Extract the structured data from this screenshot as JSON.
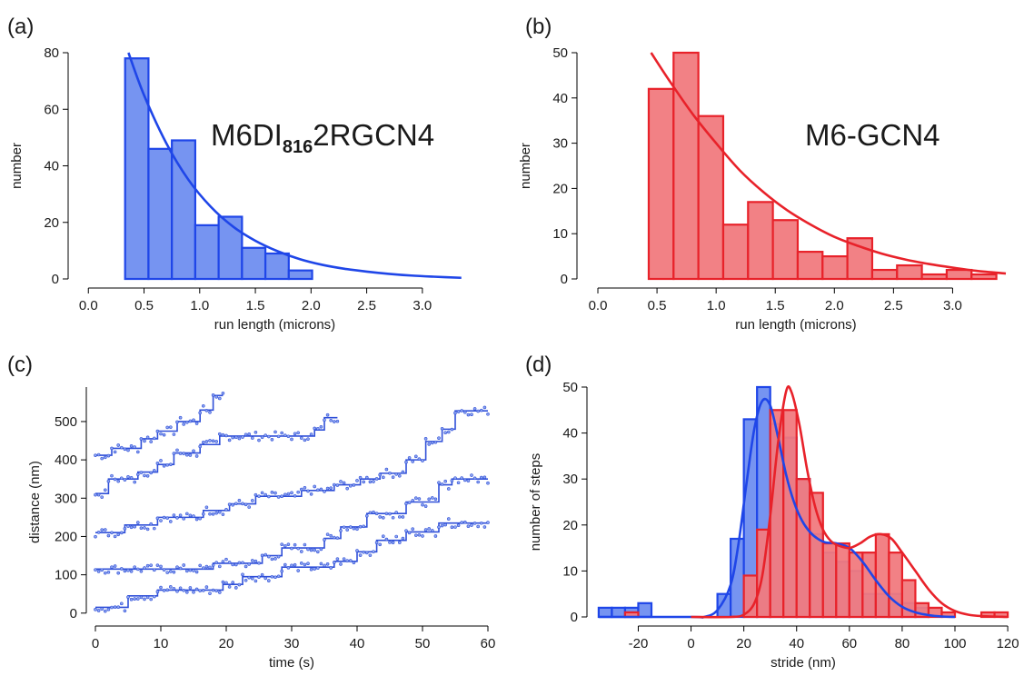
{
  "panel_labels": [
    "(a)",
    "(b)",
    "(c)",
    "(d)"
  ],
  "chart_data": [
    {
      "panel": "(a)",
      "type": "bar",
      "annotation": {
        "main": "M6DI",
        "subscript": "816",
        "rest": "2RGCN4"
      },
      "xlabel": "run length (microns)",
      "ylabel": "number",
      "xlim": [
        -0.1,
        3.45
      ],
      "ylim": [
        0,
        80
      ],
      "xticks": [
        0.0,
        0.5,
        1.0,
        1.5,
        2.0,
        2.5,
        3.0
      ],
      "xtick_labels": [
        "0.0",
        "0.5",
        "1.0",
        "1.5",
        "2.0",
        "2.5",
        "3.0"
      ],
      "yticks": [
        0,
        20,
        40,
        60,
        80
      ],
      "ytick_labels": [
        "0",
        "20",
        "40",
        "60",
        "80"
      ],
      "series": [
        {
          "kind": "histogram",
          "bins": [
            [
              0.33,
              0.54
            ],
            [
              0.54,
              0.75
            ],
            [
              0.75,
              0.96
            ],
            [
              0.96,
              1.17
            ],
            [
              1.17,
              1.38
            ],
            [
              1.38,
              1.59
            ],
            [
              1.59,
              1.8
            ],
            [
              1.8,
              2.01
            ]
          ],
          "values": [
            78,
            46,
            49,
            19,
            22,
            11,
            9,
            3
          ],
          "color": "#1f46e8",
          "fill": "#6f8ef0"
        },
        {
          "kind": "fit",
          "x": [
            0.36,
            0.5,
            0.7,
            0.9,
            1.1,
            1.3,
            1.5,
            1.7,
            1.9,
            2.1,
            2.3,
            2.5,
            2.7,
            2.9,
            3.1,
            3.35
          ],
          "y": [
            80,
            65,
            48,
            35,
            25.5,
            18.5,
            13.5,
            9.8,
            7.0,
            5.0,
            3.6,
            2.6,
            1.8,
            1.2,
            0.8,
            0.4
          ],
          "color": "#1f46e8"
        }
      ]
    },
    {
      "panel": "(b)",
      "type": "bar",
      "annotation": {
        "main": "M6-GCN4"
      },
      "xlabel": "run length (microns)",
      "ylabel": "number",
      "xlim": [
        -0.1,
        3.45
      ],
      "ylim": [
        0,
        50
      ],
      "xticks": [
        0.0,
        0.5,
        1.0,
        1.5,
        2.0,
        2.5,
        3.0
      ],
      "xtick_labels": [
        "0.0",
        "0.5",
        "1.0",
        "1.5",
        "2.0",
        "2.5",
        "3.0"
      ],
      "yticks": [
        0,
        10,
        20,
        30,
        40,
        50
      ],
      "ytick_labels": [
        "0",
        "10",
        "20",
        "30",
        "40",
        "50"
      ],
      "series": [
        {
          "kind": "histogram",
          "bins": [
            [
              0.43,
              0.64
            ],
            [
              0.64,
              0.85
            ],
            [
              0.85,
              1.06
            ],
            [
              1.06,
              1.27
            ],
            [
              1.27,
              1.48
            ],
            [
              1.48,
              1.69
            ],
            [
              1.69,
              1.9
            ],
            [
              1.9,
              2.11
            ],
            [
              2.11,
              2.32
            ],
            [
              2.32,
              2.53
            ],
            [
              2.53,
              2.74
            ],
            [
              2.74,
              2.95
            ],
            [
              2.95,
              3.16
            ],
            [
              3.16,
              3.37
            ]
          ],
          "values": [
            42,
            50,
            36,
            12,
            17,
            13,
            6,
            5,
            9,
            2,
            3,
            1,
            2,
            1
          ],
          "color": "#e8222a",
          "fill": "#f17a7e"
        },
        {
          "kind": "fit",
          "x": [
            0.45,
            0.6,
            0.8,
            1.0,
            1.2,
            1.4,
            1.6,
            1.8,
            2.0,
            2.2,
            2.4,
            2.6,
            2.8,
            3.0,
            3.2,
            3.45
          ],
          "y": [
            50,
            44,
            36.5,
            30,
            24,
            19.2,
            15.2,
            12,
            9.3,
            7.3,
            5.6,
            4.3,
            3.3,
            2.5,
            1.8,
            1.2
          ],
          "color": "#e8222a"
        }
      ]
    },
    {
      "panel": "(c)",
      "type": "scatter",
      "xlabel": "time (s)",
      "ylabel": "distance (nm)",
      "xlim": [
        0,
        60
      ],
      "ylim": [
        -10,
        590
      ],
      "xticks": [
        0,
        10,
        20,
        30,
        40,
        50,
        60
      ],
      "xtick_labels": [
        "0",
        "10",
        "20",
        "30",
        "40",
        "50",
        "60"
      ],
      "yticks": [
        0,
        100,
        200,
        300,
        400,
        500
      ],
      "ytick_labels": [
        "0",
        "100",
        "200",
        "300",
        "400",
        "500"
      ],
      "color": "#2f4fd8",
      "series": [
        {
          "x_range": [
            0,
            19.5
          ],
          "steps": [
            [
              0,
              412
            ],
            [
              2.5,
              430
            ],
            [
              7,
              455
            ],
            [
              9.5,
              475
            ],
            [
              12.5,
              500
            ],
            [
              16,
              530
            ],
            [
              18,
              568
            ]
          ]
        },
        {
          "x_range": [
            0,
            37
          ],
          "steps": [
            [
              0,
              312
            ],
            [
              2,
              350
            ],
            [
              6.5,
              368
            ],
            [
              9.5,
              388
            ],
            [
              12,
              418
            ],
            [
              16,
              440
            ],
            [
              19,
              462
            ],
            [
              33.5,
              478
            ],
            [
              35,
              510
            ]
          ]
        },
        {
          "x_range": [
            0,
            60
          ],
          "steps": [
            [
              0,
              210
            ],
            [
              4.5,
              230
            ],
            [
              9.5,
              250
            ],
            [
              16.5,
              268
            ],
            [
              20.5,
              285
            ],
            [
              24.5,
              305
            ],
            [
              31.5,
              320
            ],
            [
              36.5,
              335
            ],
            [
              40.5,
              350
            ],
            [
              43.5,
              365
            ],
            [
              47.5,
              400
            ],
            [
              50.5,
              448
            ],
            [
              53,
              480
            ],
            [
              55,
              528
            ]
          ]
        },
        {
          "x_range": [
            0,
            60
          ],
          "steps": [
            [
              0,
              115
            ],
            [
              18,
              130
            ],
            [
              25.5,
              150
            ],
            [
              28.5,
              170
            ],
            [
              35,
              195
            ],
            [
              37.5,
              225
            ],
            [
              41.5,
              260
            ],
            [
              47.5,
              290
            ],
            [
              52.5,
              335
            ],
            [
              54.5,
              350
            ]
          ]
        },
        {
          "x_range": [
            0,
            60
          ],
          "steps": [
            [
              0,
              15
            ],
            [
              5,
              45
            ],
            [
              9.5,
              60
            ],
            [
              19.5,
              75
            ],
            [
              22.5,
              95
            ],
            [
              28.5,
              120
            ],
            [
              36.5,
              135
            ],
            [
              40,
              160
            ],
            [
              43,
              190
            ],
            [
              47.5,
              212
            ],
            [
              52.5,
              235
            ]
          ]
        }
      ]
    },
    {
      "panel": "(d)",
      "type": "bar",
      "xlabel": "stride (nm)",
      "ylabel": "number of steps",
      "xlim": [
        -36,
        121
      ],
      "ylim": [
        0,
        50
      ],
      "xticks": [
        -20,
        0,
        20,
        40,
        60,
        80,
        100,
        120
      ],
      "xtick_labels": [
        "-20",
        "0",
        "20",
        "40",
        "60",
        "80",
        "100",
        "120"
      ],
      "yticks": [
        0,
        10,
        20,
        30,
        40,
        50
      ],
      "ytick_labels": [
        "0",
        "10",
        "20",
        "30",
        "40",
        "50"
      ],
      "series": [
        {
          "kind": "histogram",
          "bin_width": 5,
          "bin_starts": [
            -35,
            -30,
            -25,
            -20,
            -15,
            -10,
            -5,
            0,
            5,
            10,
            15,
            20,
            25,
            30,
            35,
            40,
            45,
            50,
            55,
            60,
            65,
            70,
            75,
            80,
            85,
            90,
            95,
            100,
            105,
            110,
            115
          ],
          "values": [
            2,
            2,
            2,
            3,
            0,
            0,
            0,
            0,
            0,
            5,
            17,
            43,
            50,
            42,
            39,
            30,
            18,
            14,
            12,
            10,
            5,
            5,
            5,
            3,
            2,
            0,
            0,
            0,
            0,
            0,
            0
          ],
          "color": "#1f46e8",
          "fill": "#6f8ef0"
        },
        {
          "kind": "histogram",
          "bin_width": 5,
          "bin_starts": [
            -35,
            -30,
            -25,
            -20,
            -15,
            -10,
            -5,
            0,
            5,
            10,
            15,
            20,
            25,
            30,
            35,
            40,
            45,
            50,
            55,
            60,
            65,
            70,
            75,
            80,
            85,
            90,
            95,
            100,
            105,
            110,
            115
          ],
          "values": [
            0,
            0,
            1,
            0,
            0,
            0,
            0,
            0,
            0,
            0,
            0,
            9,
            19,
            45,
            45,
            30,
            27,
            16,
            16,
            14,
            14,
            18,
            14,
            8,
            3,
            2,
            1,
            0,
            0,
            1,
            1
          ],
          "color": "#e8222a",
          "fill": "#f17a7e"
        },
        {
          "kind": "fit",
          "x": [
            -35,
            0,
            5,
            10,
            15,
            18,
            21,
            24,
            27,
            30,
            33,
            36,
            39,
            42,
            45,
            48,
            51,
            55,
            60,
            65,
            70,
            75,
            80,
            85,
            90,
            95,
            100
          ],
          "y": [
            0,
            0,
            0,
            1.5,
            7,
            16,
            29,
            41,
            47,
            46,
            39,
            31,
            25,
            21,
            18.5,
            17,
            16.2,
            16,
            15,
            12,
            8,
            4.5,
            2.2,
            1,
            0.4,
            0.1,
            0
          ],
          "color": "#1f46e8"
        },
        {
          "kind": "fit",
          "x": [
            0,
            15,
            20,
            24,
            27,
            30,
            33,
            36,
            38,
            41,
            44,
            47,
            50,
            53,
            56,
            60,
            64,
            68,
            72,
            76,
            80,
            85,
            90,
            95,
            100,
            105,
            110,
            120
          ],
          "y": [
            0,
            0,
            0.5,
            3,
            9,
            22,
            38,
            49,
            49,
            42,
            32,
            24,
            19,
            16.5,
            15.5,
            15,
            16,
            17.5,
            18,
            17,
            14,
            10,
            6,
            3,
            1.3,
            0.5,
            0.2,
            0
          ],
          "color": "#e8222a"
        }
      ]
    }
  ]
}
